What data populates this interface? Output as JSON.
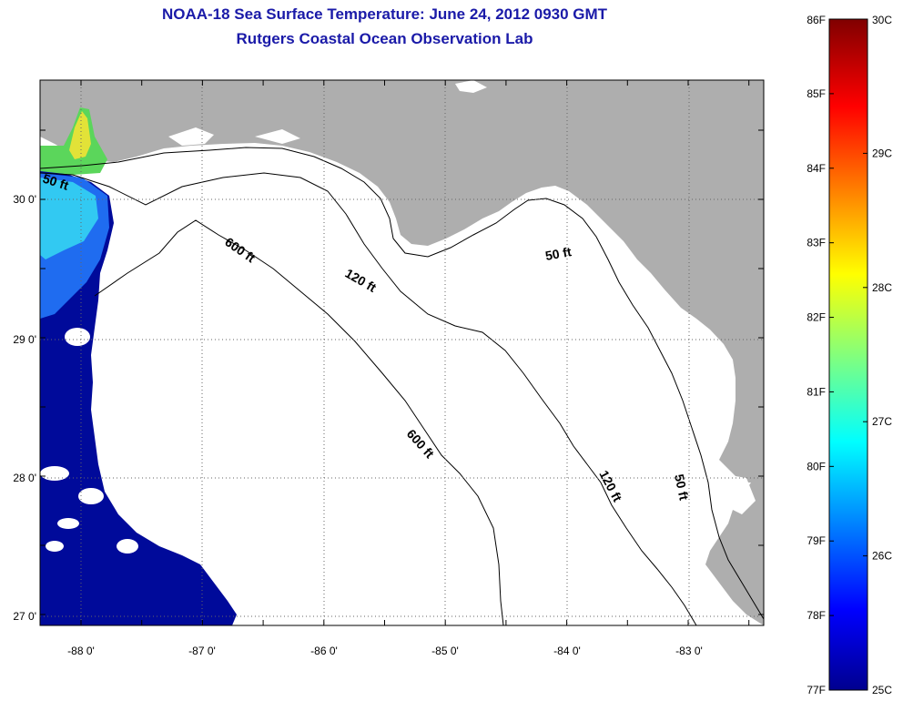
{
  "title": {
    "line1": "NOAA-18 Sea Surface Temperature:  June 24, 2012 0930 GMT",
    "line2": "Rutgers Coastal Ocean Observation Lab"
  },
  "map": {
    "lon_ticks": [
      "-88 0'",
      "-87 0'",
      "-86 0'",
      "-85 0'",
      "-84 0'",
      "-83 0'"
    ],
    "lat_ticks": [
      "30 0'",
      "29 0'",
      "28 0'",
      "27 0'"
    ],
    "contour_labels": {
      "ft50_west": "50 ft",
      "ft50_east": "50 ft",
      "ft50_south": "50 ft",
      "ft120_north": "120 ft",
      "ft120_south": "120 ft",
      "ft600_north": "600 ft",
      "ft600_south": "600 ft"
    },
    "colors": {
      "land": "#aeaeae",
      "water": "#ffffff",
      "cold_sst": "#000a9a"
    }
  },
  "colorbar": {
    "fahrenheit": [
      "86F",
      "85F",
      "84F",
      "83F",
      "82F",
      "81F",
      "80F",
      "79F",
      "78F",
      "77F"
    ],
    "celsius": [
      "30C",
      "29C",
      "28C",
      "27C",
      "26C",
      "25C"
    ],
    "min_c": 25,
    "max_c": 30
  }
}
